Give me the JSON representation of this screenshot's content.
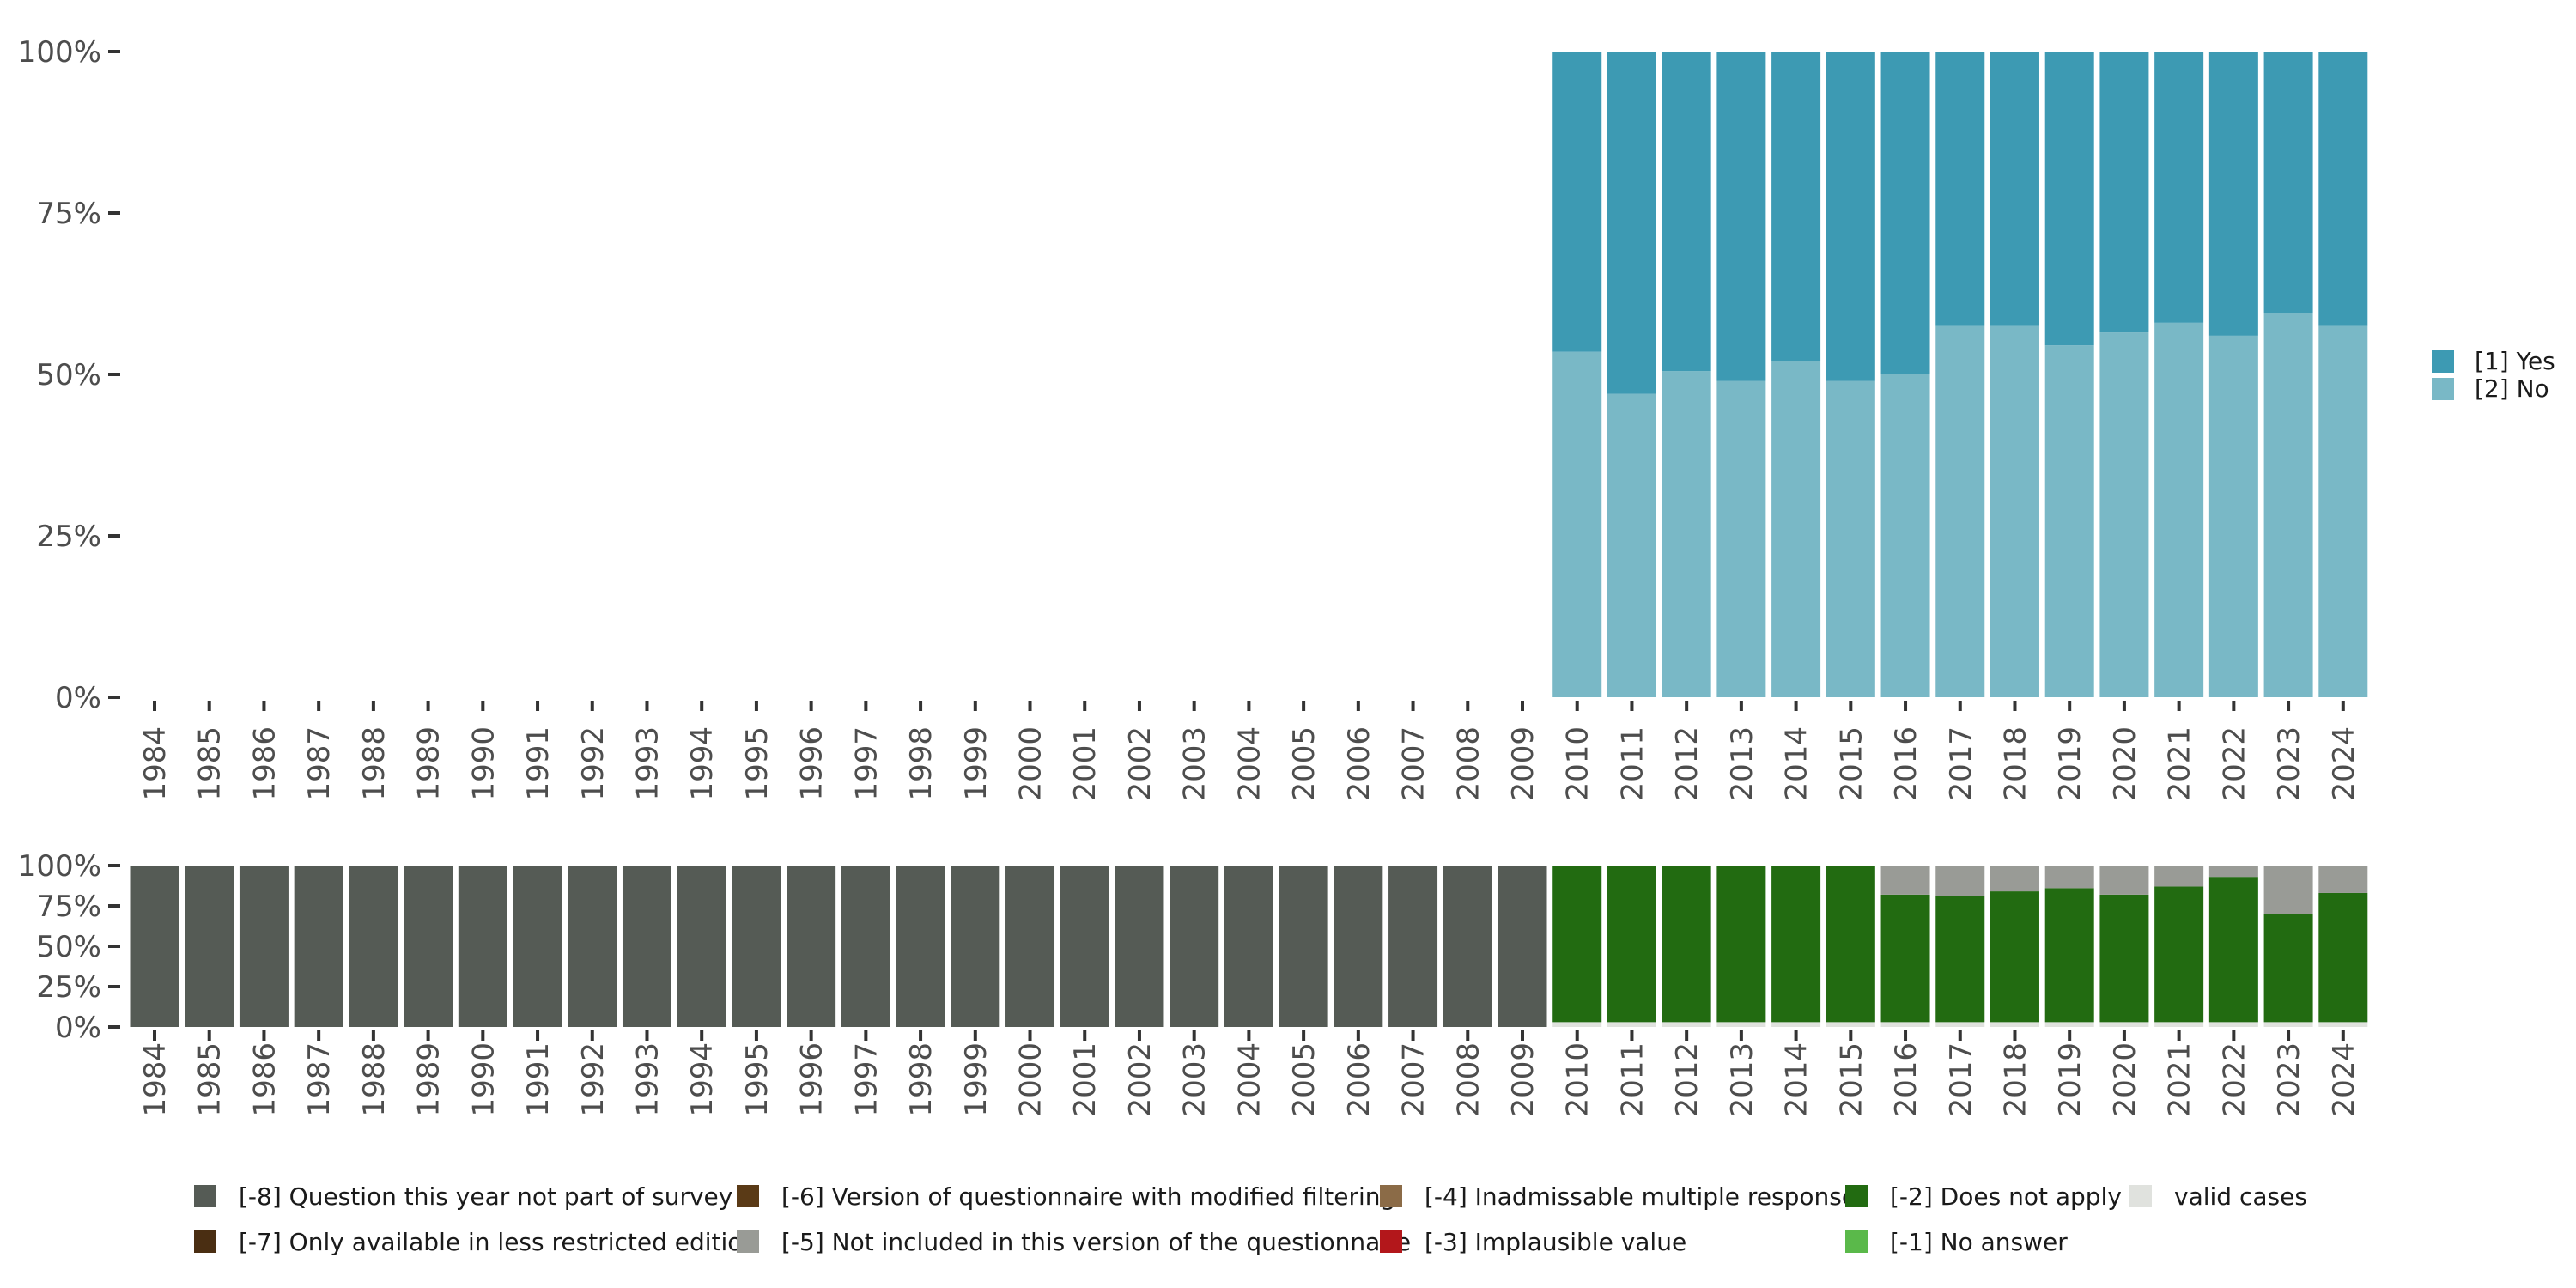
{
  "chart_data": [
    {
      "type": "bar",
      "stacked": true,
      "title": "",
      "xlabel": "",
      "ylabel": "",
      "ylim": [
        0,
        100
      ],
      "y_ticks": [
        "0%",
        "25%",
        "50%",
        "75%",
        "100%"
      ],
      "y_tick_values": [
        0,
        25,
        50,
        75,
        100
      ],
      "categories": [
        "1984",
        "1985",
        "1986",
        "1987",
        "1988",
        "1989",
        "1990",
        "1991",
        "1992",
        "1993",
        "1994",
        "1995",
        "1996",
        "1997",
        "1998",
        "1999",
        "2000",
        "2001",
        "2002",
        "2003",
        "2004",
        "2005",
        "2006",
        "2007",
        "2008",
        "2009",
        "2010",
        "2011",
        "2012",
        "2013",
        "2014",
        "2015",
        "2016",
        "2017",
        "2018",
        "2019",
        "2020",
        "2021",
        "2022",
        "2023",
        "2024"
      ],
      "legend_position": "right",
      "series": [
        {
          "name": "[2] No",
          "color": "#79b8c6",
          "values": [
            null,
            null,
            null,
            null,
            null,
            null,
            null,
            null,
            null,
            null,
            null,
            null,
            null,
            null,
            null,
            null,
            null,
            null,
            null,
            null,
            null,
            null,
            null,
            null,
            null,
            null,
            53.5,
            47,
            50.5,
            49,
            52,
            49,
            50,
            57.5,
            57.5,
            54.5,
            56.5,
            58,
            56,
            59.5,
            57.5
          ]
        },
        {
          "name": "[1] Yes",
          "color": "#3d9ab3",
          "values": [
            null,
            null,
            null,
            null,
            null,
            null,
            null,
            null,
            null,
            null,
            null,
            null,
            null,
            null,
            null,
            null,
            null,
            null,
            null,
            null,
            null,
            null,
            null,
            null,
            null,
            null,
            46.5,
            53,
            49.5,
            51,
            48,
            51,
            50,
            42.5,
            42.5,
            45.5,
            43.5,
            42,
            44,
            40.5,
            42.5
          ]
        }
      ]
    },
    {
      "type": "bar",
      "stacked": true,
      "title": "",
      "xlabel": "",
      "ylabel": "",
      "ylim": [
        0,
        100
      ],
      "y_ticks": [
        "0%",
        "25%",
        "50%",
        "75%",
        "100%"
      ],
      "y_tick_values": [
        0,
        25,
        50,
        75,
        100
      ],
      "categories": [
        "1984",
        "1985",
        "1986",
        "1987",
        "1988",
        "1989",
        "1990",
        "1991",
        "1992",
        "1993",
        "1994",
        "1995",
        "1996",
        "1997",
        "1998",
        "1999",
        "2000",
        "2001",
        "2002",
        "2003",
        "2004",
        "2005",
        "2006",
        "2007",
        "2008",
        "2009",
        "2010",
        "2011",
        "2012",
        "2013",
        "2014",
        "2015",
        "2016",
        "2017",
        "2018",
        "2019",
        "2020",
        "2021",
        "2022",
        "2023",
        "2024"
      ],
      "legend_position": "bottom",
      "series": [
        {
          "name": "valid cases",
          "color": "#e0e2de",
          "values": [
            0,
            0,
            0,
            0,
            0,
            0,
            0,
            0,
            0,
            0,
            0,
            0,
            0,
            0,
            0,
            0,
            0,
            0,
            0,
            0,
            0,
            0,
            0,
            0,
            0,
            0,
            3,
            3,
            3,
            3,
            3,
            3,
            3,
            3,
            3,
            3,
            3,
            3,
            3,
            3,
            3
          ]
        },
        {
          "name": "[-2] Does not apply",
          "color": "#226b11",
          "values": [
            0,
            0,
            0,
            0,
            0,
            0,
            0,
            0,
            0,
            0,
            0,
            0,
            0,
            0,
            0,
            0,
            0,
            0,
            0,
            0,
            0,
            0,
            0,
            0,
            0,
            0,
            97,
            97,
            97,
            97,
            97,
            97,
            79,
            78,
            81,
            83,
            79,
            84,
            90,
            67,
            80
          ]
        },
        {
          "name": "[-5] Not included in this version of the questionnaire",
          "color": "#999b96",
          "values": [
            0,
            0,
            0,
            0,
            0,
            0,
            0,
            0,
            0,
            0,
            0,
            0,
            0,
            0,
            0,
            0,
            0,
            0,
            0,
            0,
            0,
            0,
            0,
            0,
            0,
            0,
            0,
            0,
            0,
            0,
            0,
            0,
            18,
            19,
            16,
            14,
            18,
            13,
            7,
            30,
            17
          ]
        },
        {
          "name": "[-8] Question this year not part of survey",
          "color": "#555b55",
          "values": [
            100,
            100,
            100,
            100,
            100,
            100,
            100,
            100,
            100,
            100,
            100,
            100,
            100,
            100,
            100,
            100,
            100,
            100,
            100,
            100,
            100,
            100,
            100,
            100,
            100,
            100,
            0,
            0,
            0,
            0,
            0,
            0,
            0,
            0,
            0,
            0,
            0,
            0,
            0,
            0,
            0
          ]
        }
      ],
      "legend": [
        {
          "label": "[-8] Question this year not part of survey",
          "color": "#555b55"
        },
        {
          "label": "[-6] Version of questionnaire with modified filtering",
          "color": "#5a3a16"
        },
        {
          "label": "[-4] Inadmissable multiple response",
          "color": "#8b6b47"
        },
        {
          "label": "[-2] Does not apply",
          "color": "#226b11"
        },
        {
          "label": "valid cases",
          "color": "#e0e2de"
        },
        {
          "label": "[-7] Only available in less restricted edition",
          "color": "#4a2e12"
        },
        {
          "label": "[-5] Not included in this version of the questionnaire",
          "color": "#999b96"
        },
        {
          "label": "[-3] Implausible value",
          "color": "#b3171b"
        },
        {
          "label": "[-1] No answer",
          "color": "#5ab94a"
        }
      ]
    }
  ]
}
